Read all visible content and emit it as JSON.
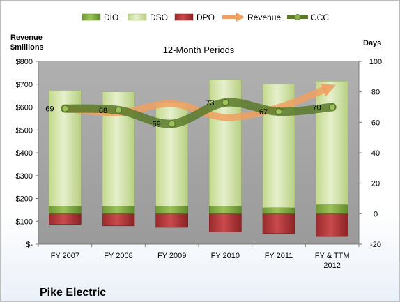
{
  "company": "Pike Electric",
  "colors": {
    "dio": "#8db050",
    "dso": "#d6e6b0",
    "dpo": "#b33a3c",
    "revenue": "#f0a060",
    "ccc": "#5a7a2a",
    "plot_bg": "#a6a6a6"
  },
  "chart_data": {
    "type": "bar",
    "title": "12-Month Periods",
    "left_axis": {
      "label": [
        "Revenue",
        "$millions"
      ],
      "range": [
        0,
        800
      ],
      "ticks": [
        0,
        100,
        200,
        300,
        400,
        500,
        600,
        700,
        800
      ],
      "tick_labels": [
        "$-",
        "$100",
        "$200",
        "$300",
        "$400",
        "$500",
        "$600",
        "$700",
        "$800"
      ]
    },
    "right_axis": {
      "label": "Days",
      "range": [
        -20,
        100
      ],
      "ticks": [
        -20,
        0,
        20,
        40,
        60,
        80,
        100
      ],
      "tick_labels": [
        "-20",
        "0",
        "20",
        "40",
        "60",
        "80",
        "100"
      ]
    },
    "categories": [
      [
        "FY 2007"
      ],
      [
        "FY 2008"
      ],
      [
        "FY 2009"
      ],
      [
        "FY 2010"
      ],
      [
        "FY 2011"
      ],
      [
        "FY & TTM",
        "2012"
      ]
    ],
    "legend": [
      "DIO",
      "DSO",
      "DPO",
      "Revenue",
      "CCC"
    ],
    "series": [
      {
        "name": "DIO",
        "axis": "right",
        "values": [
          5,
          5,
          5,
          5,
          4,
          6
        ]
      },
      {
        "name": "DSO",
        "axis": "right",
        "values": [
          76,
          75,
          68,
          83,
          81,
          81
        ]
      },
      {
        "name": "DPO",
        "axis": "right",
        "values": [
          -7,
          -8,
          -9,
          -12,
          -13,
          -15
        ]
      },
      {
        "name": "Revenue",
        "axis": "left",
        "values": [
          595,
          575,
          615,
          555,
          598,
          690
        ]
      },
      {
        "name": "CCC",
        "axis": "right",
        "values": [
          69,
          68,
          59,
          73,
          67,
          70
        ],
        "labels": [
          "69",
          "68",
          "59",
          "73",
          "67",
          "70"
        ]
      }
    ],
    "grid": false,
    "legend_position": "top"
  }
}
